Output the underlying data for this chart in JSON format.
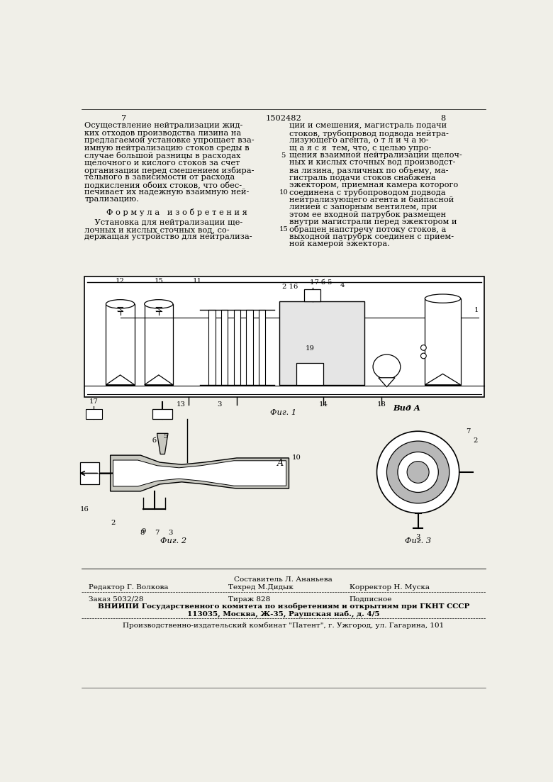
{
  "bg_color": "#f0efe8",
  "page_color": "#f0efe8",
  "title_number": "1502482",
  "page_left": "7",
  "page_right": "8",
  "text_col1_lines": [
    "Осуществление нейтрализации жид-",
    "ких отходов производства лизина на",
    "предлагаемой установке упрощает вза-",
    "имную нейтрализацию стоков среды в",
    "случае большой разницы в расходах",
    "щелочного и кислого стоков за счет",
    "организации перед смешением избира-",
    "тельного в зависимости от расхода",
    "подкисления обоих стоков, что обес-",
    "печивает их надежную взаимную ней-",
    "трализацию."
  ],
  "formula_header": "Ф о р м у л а   и з о б р е т е н и я",
  "formula_text_lines": [
    "    Установка для нейтрализации ще-",
    "лочных и кислых сточных вод, со-",
    "держащая устройство для нейтрализа-"
  ],
  "text_col2_lines": [
    "ции и смешения, магистраль подачи",
    "стоков, трубопровод подвода нейтра-",
    "лизующего агента, о т л и ч а ю-",
    "щ а я с я  тем, что, с целью упро-",
    "щения взаимной нейтрализации щелоч-",
    "ных и кислых сточных вод производст-",
    "ва лизина, различных по объему, ма-",
    "гистраль подачи стоков снабжена",
    "эжектором, приемная камера которого",
    "соединена с трубопроводом подвода",
    "нейтрализующего агента и байпасной",
    "линией с запорным вентилем, при",
    "этом ее входной патрубок размещен",
    "внутри магистрали перед эжектором и",
    "обращен напстречу потоку стоков, а",
    "выходной патрубрк соединен с прием-",
    "ной камерой эжектора."
  ],
  "fig1_label": "Фиг. 1",
  "fig2_label": "Фиг. 2",
  "fig3_label": "Фиг. 3",
  "vid_a_label": "Вид А",
  "footer_line1_left": "Редактор Г. Волкова",
  "footer_line1_center": "Техред М.Дидык",
  "footer_line1_center_top": "Составитель Л. Ананьева",
  "footer_line1_right": "Корректор Н. Муска",
  "footer_line2_left": "Заказ 5032/28",
  "footer_line2_center": "Тираж 828",
  "footer_line2_right": "Подписное",
  "footer_line3": "ВНИИПИ Государственного комитета по изобретениям и открытиям при ГКНТ СССР",
  "footer_line4": "113035, Москва, Ж-35, Раушская наб., д. 4/5",
  "footer_line5": "Производственно-издательский комбинат \"Патент\", г. Ужгород, ул. Гагарина, 101",
  "font_size_body": 8.2,
  "font_size_small": 7.2,
  "font_size_footer": 7.5
}
